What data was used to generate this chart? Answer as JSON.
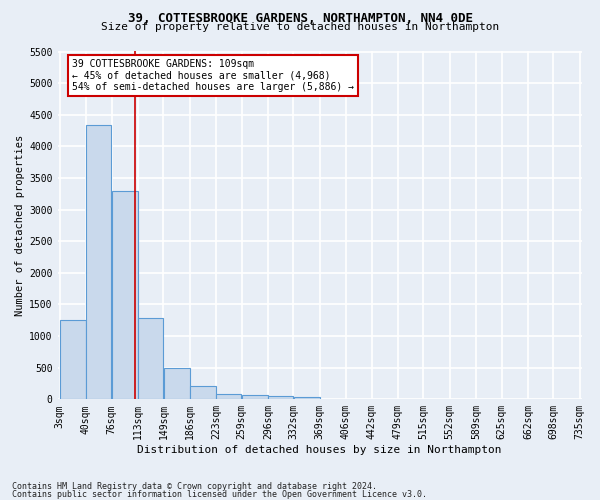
{
  "title": "39, COTTESBROOKE GARDENS, NORTHAMPTON, NN4 0DE",
  "subtitle": "Size of property relative to detached houses in Northampton",
  "xlabel": "Distribution of detached houses by size in Northampton",
  "ylabel": "Number of detached properties",
  "footnote1": "Contains HM Land Registry data © Crown copyright and database right 2024.",
  "footnote2": "Contains public sector information licensed under the Open Government Licence v3.0.",
  "bar_color": "#c9d9ec",
  "bar_edge_color": "#5b9bd5",
  "background_color": "#e8eef6",
  "fig_background_color": "#e8eef6",
  "grid_color": "#ffffff",
  "annotation_line1": "39 COTTESBROOKE GARDENS: 109sqm",
  "annotation_line2": "← 45% of detached houses are smaller (4,968)",
  "annotation_line3": "54% of semi-detached houses are larger (5,886) →",
  "annotation_box_color": "#ffffff",
  "annotation_box_edge_color": "#cc0000",
  "vline_color": "#cc0000",
  "vline_x": 109,
  "bin_edges": [
    3,
    40,
    76,
    113,
    149,
    186,
    223,
    259,
    296,
    332,
    369,
    406,
    442,
    479,
    515,
    552,
    589,
    625,
    662,
    698,
    735
  ],
  "bar_heights": [
    1260,
    4330,
    3300,
    1280,
    490,
    210,
    90,
    70,
    55,
    40,
    0,
    0,
    0,
    0,
    0,
    0,
    0,
    0,
    0,
    0
  ],
  "ylim": [
    0,
    5500
  ],
  "yticks": [
    0,
    500,
    1000,
    1500,
    2000,
    2500,
    3000,
    3500,
    4000,
    4500,
    5000,
    5500
  ],
  "title_fontsize": 9,
  "subtitle_fontsize": 8,
  "ylabel_fontsize": 7.5,
  "xlabel_fontsize": 8,
  "tick_fontsize": 7,
  "annotation_fontsize": 7
}
